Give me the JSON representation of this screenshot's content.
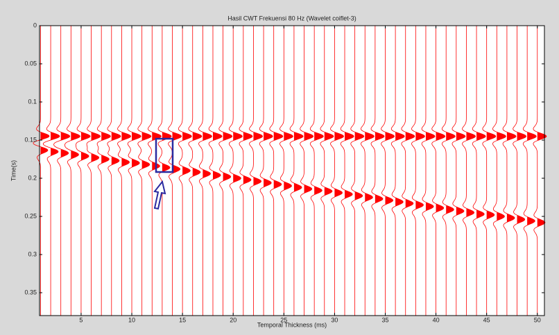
{
  "chart_data": {
    "type": "wiggle",
    "title": "Hasil CWT Frekuensi 80 Hz (Wavelet coiflet-3)",
    "x_label": "Temporal Thickness (ms)",
    "y_label": "Time(s)",
    "x": [
      1,
      2,
      3,
      4,
      5,
      6,
      7,
      8,
      9,
      10,
      11,
      12,
      13,
      14,
      15,
      16,
      17,
      18,
      19,
      20,
      21,
      22,
      23,
      24,
      25,
      26,
      27,
      28,
      29,
      30,
      31,
      32,
      33,
      34,
      35,
      36,
      37,
      38,
      39,
      40,
      41,
      42,
      43,
      44,
      45,
      46,
      47,
      48,
      49,
      50
    ],
    "series": [
      {
        "color": "#ff0000",
        "values": [
          0.145,
          0.145,
          0.145,
          0.145,
          0.145,
          0.145,
          0.145,
          0.145,
          0.145,
          0.145,
          0.145,
          0.145,
          0.145,
          0.145,
          0.145,
          0.145,
          0.145,
          0.145,
          0.145,
          0.145,
          0.145,
          0.145,
          0.145,
          0.145,
          0.145,
          0.145,
          0.145,
          0.145,
          0.145,
          0.145,
          0.145,
          0.145,
          0.145,
          0.145,
          0.145,
          0.145,
          0.145,
          0.145,
          0.145,
          0.145,
          0.145,
          0.145,
          0.145,
          0.145,
          0.145,
          0.145,
          0.145,
          0.145,
          0.145,
          0.145
        ]
      },
      {
        "color": "#ff0000",
        "values": [
          0.163,
          0.165,
          0.167,
          0.169,
          0.171,
          0.173,
          0.175,
          0.177,
          0.179,
          0.18,
          0.182,
          0.184,
          0.186,
          0.188,
          0.19,
          0.192,
          0.194,
          0.196,
          0.198,
          0.2,
          0.202,
          0.204,
          0.206,
          0.208,
          0.21,
          0.212,
          0.214,
          0.216,
          0.217,
          0.219,
          0.221,
          0.223,
          0.225,
          0.227,
          0.229,
          0.231,
          0.233,
          0.235,
          0.237,
          0.239,
          0.241,
          0.243,
          0.245,
          0.247,
          0.248,
          0.25,
          0.252,
          0.254,
          0.256,
          0.258
        ]
      }
    ],
    "xlim": [
      0.9,
      50.7
    ],
    "ylim": [
      0,
      0.38
    ],
    "xticks": [
      5,
      10,
      15,
      20,
      25,
      30,
      35,
      40,
      45,
      50
    ],
    "yticks": [
      0,
      0.05,
      0.1,
      0.15,
      0.2,
      0.25,
      0.3,
      0.35
    ],
    "y_reversed": true,
    "background": "#ffffff"
  }
}
